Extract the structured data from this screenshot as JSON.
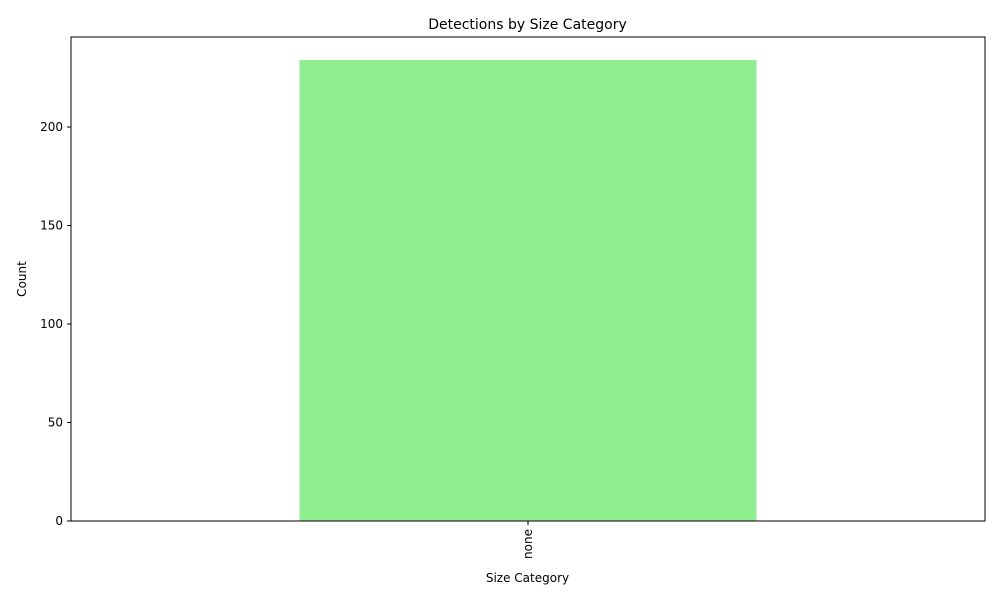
{
  "chart_data": {
    "type": "bar",
    "title": "Detections by Size Category",
    "xlabel": "Size Category",
    "ylabel": "Count",
    "categories": [
      "none"
    ],
    "values": [
      234
    ],
    "ylim": [
      0,
      245.7
    ],
    "yticks": [
      0,
      50,
      100,
      150,
      200
    ],
    "grid": false,
    "bar_color": "#90ee90"
  }
}
